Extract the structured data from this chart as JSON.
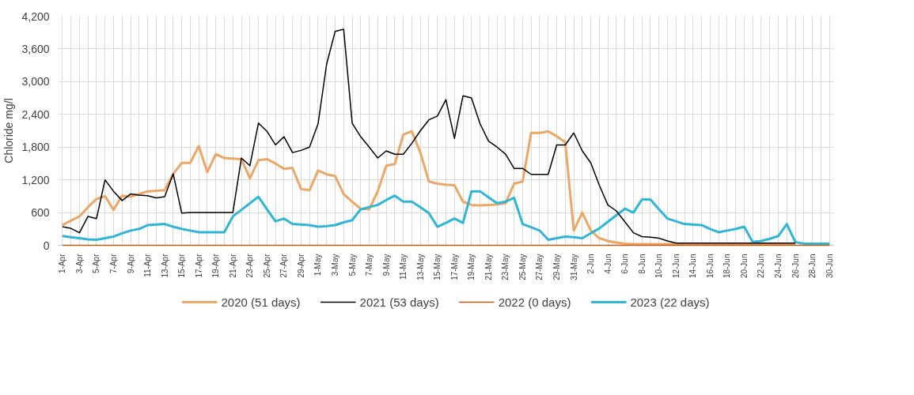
{
  "chart_data": {
    "type": "line",
    "ylabel": "Chloride mg/l",
    "categories": [
      "1-Apr",
      null,
      "3-Apr",
      null,
      "5-Apr",
      null,
      "7-Apr",
      null,
      "9-Apr",
      null,
      "11-Apr",
      null,
      "13-Apr",
      null,
      "15-Apr",
      null,
      "17-Apr",
      null,
      "19-Apr",
      null,
      "21-Apr",
      null,
      "23-Apr",
      null,
      "25-Apr",
      null,
      "27-Apr",
      null,
      "29-Apr",
      null,
      "1-May",
      null,
      "3-May",
      null,
      "5-May",
      null,
      "7-May",
      null,
      "9-May",
      null,
      "11-May",
      null,
      "13-May",
      null,
      "15-May",
      null,
      "17-May",
      null,
      "19-May",
      null,
      "21-May",
      null,
      "23-May",
      null,
      "25-May",
      null,
      "27-May",
      null,
      "29-May",
      null,
      "31-May",
      null,
      "2-Jun",
      null,
      "4-Jun",
      null,
      "6-Jun",
      null,
      "8-Jun",
      null,
      "10-Jun",
      null,
      "12-Jun",
      null,
      "14-Jun",
      null,
      "16-Jun",
      null,
      "18-Jun",
      null,
      "20-Jun",
      null,
      "22-Jun",
      null,
      "24-Jun",
      null,
      "26-Jun",
      null,
      "28-Jun",
      null,
      "30-Jun"
    ],
    "ylim": [
      0,
      4200
    ],
    "yticks": [
      0,
      600,
      {
        "value": 1200,
        "label": "1,200"
      },
      {
        "value": 1800,
        "label": "1,800"
      },
      {
        "value": 2400,
        "label": "2,400"
      },
      {
        "value": 3000,
        "label": "3,000"
      },
      {
        "value": 3600,
        "label": "3,600"
      },
      {
        "value": 4200,
        "label": "4,200"
      }
    ],
    "grid": true,
    "legend": "bottom",
    "marker": "none",
    "line_style": "solid",
    "series": [
      {
        "name": "2020 (51 days)",
        "color": "#eda765",
        "values": [
          370,
          450,
          530,
          700,
          850,
          900,
          650,
          910,
          890,
          940,
          990,
          1000,
          1010,
          1310,
          1510,
          1510,
          1820,
          1340,
          1670,
          1600,
          1590,
          1580,
          1230,
          1560,
          1580,
          1500,
          1400,
          1420,
          1030,
          1010,
          1370,
          1300,
          1270,
          940,
          800,
          670,
          660,
          990,
          1460,
          1490,
          2030,
          2090,
          1700,
          1170,
          1130,
          1110,
          1100,
          800,
          740,
          730,
          740,
          750,
          770,
          1130,
          1170,
          2060,
          2060,
          2090,
          2000,
          1890,
          270,
          600,
          270,
          130,
          80,
          50,
          30,
          20,
          20,
          20,
          20,
          20,
          20,
          20,
          20,
          20,
          20,
          20,
          20,
          20,
          20,
          20,
          20,
          20,
          20,
          20,
          20,
          null,
          null,
          null,
          null
        ]
      },
      {
        "name": "2021 (53 days)",
        "color": "#000000",
        "values": [
          340,
          310,
          230,
          530,
          490,
          1200,
          990,
          820,
          940,
          920,
          910,
          870,
          890,
          1310,
          590,
          600,
          600,
          600,
          600,
          600,
          600,
          1600,
          1460,
          2240,
          2090,
          1840,
          1990,
          1700,
          1740,
          1800,
          2230,
          3320,
          3920,
          3960,
          2240,
          1990,
          1800,
          1600,
          1730,
          1670,
          1670,
          1870,
          2100,
          2300,
          2370,
          2670,
          1960,
          2740,
          2700,
          2230,
          1910,
          1800,
          1670,
          1410,
          1410,
          1300,
          1300,
          1300,
          1840,
          1840,
          2060,
          1730,
          1510,
          1100,
          740,
          630,
          430,
          230,
          160,
          150,
          130,
          80,
          40,
          40,
          40,
          40,
          40,
          40,
          40,
          40,
          40,
          40,
          40,
          40,
          40,
          40,
          40,
          null,
          null,
          null,
          null
        ]
      },
      {
        "name": "2022 (0 days)",
        "color": "#c55a11",
        "values": [
          0,
          0,
          0,
          0,
          0,
          0,
          0,
          0,
          0,
          0,
          0,
          0,
          0,
          0,
          0,
          0,
          0,
          0,
          0,
          0,
          0,
          0,
          0,
          0,
          0,
          0,
          0,
          0,
          0,
          0,
          0,
          0,
          0,
          0,
          0,
          0,
          0,
          0,
          0,
          0,
          0,
          0,
          0,
          0,
          0,
          0,
          0,
          0,
          0,
          0,
          0,
          0,
          0,
          0,
          0,
          0,
          0,
          0,
          0,
          0,
          0,
          0,
          0,
          0,
          0,
          0,
          0,
          0,
          0,
          0,
          0,
          0,
          0,
          0,
          0,
          0,
          0,
          0,
          0,
          0,
          0,
          0,
          0,
          0,
          0,
          0,
          0,
          0,
          0,
          0,
          0
        ]
      },
      {
        "name": "2023 (22 days)",
        "color": "#2fb5d6",
        "values": [
          170,
          150,
          130,
          110,
          100,
          130,
          160,
          220,
          270,
          300,
          370,
          380,
          390,
          340,
          300,
          270,
          240,
          240,
          240,
          240,
          530,
          650,
          770,
          890,
          660,
          440,
          490,
          390,
          380,
          370,
          340,
          350,
          370,
          420,
          460,
          660,
          700,
          740,
          830,
          910,
          800,
          800,
          700,
          590,
          340,
          410,
          490,
          410,
          990,
          990,
          880,
          770,
          800,
          870,
          390,
          330,
          270,
          100,
          130,
          160,
          150,
          130,
          220,
          310,
          430,
          550,
          670,
          600,
          840,
          840,
          660,
          490,
          440,
          390,
          380,
          370,
          300,
          240,
          270,
          300,
          340,
          60,
          80,
          120,
          170,
          390,
          60,
          30,
          30,
          30,
          30
        ]
      }
    ]
  }
}
